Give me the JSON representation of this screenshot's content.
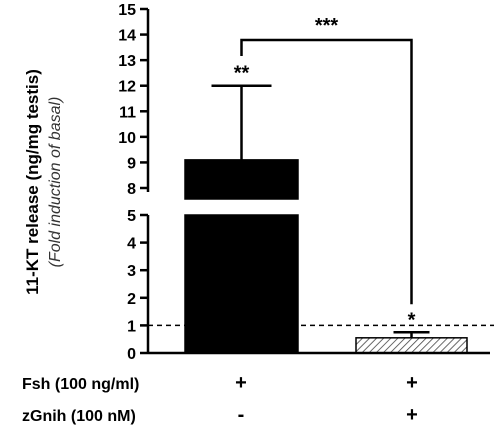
{
  "chart_data": {
    "type": "bar",
    "ylabel": "11-KT release (ng/mg testis)",
    "ylabel_sub": "(Fold induction of basal)",
    "axis_break": true,
    "y_segments": [
      {
        "range": [
          0,
          5
        ],
        "ticks": [
          "0",
          "1",
          "2",
          "3",
          "4",
          "5"
        ]
      },
      {
        "range": [
          8,
          15
        ],
        "ticks": [
          "8",
          "9",
          "10",
          "11",
          "12",
          "13",
          "14",
          "15"
        ]
      }
    ],
    "reference_line": 1,
    "series": [
      {
        "values": [
          9.1,
          0.55
        ],
        "errors": [
          2.9,
          0.2
        ],
        "fills": [
          "#000000",
          "hatched"
        ]
      }
    ],
    "significance": {
      "bar_marks": [
        "**",
        "*"
      ],
      "between": "***"
    },
    "conditions": [
      {
        "label": "Fsh (100 ng/ml)",
        "values": [
          "+",
          "+"
        ]
      },
      {
        "label": "zGnih (100 nM)",
        "values": [
          "-",
          "+"
        ]
      }
    ]
  }
}
